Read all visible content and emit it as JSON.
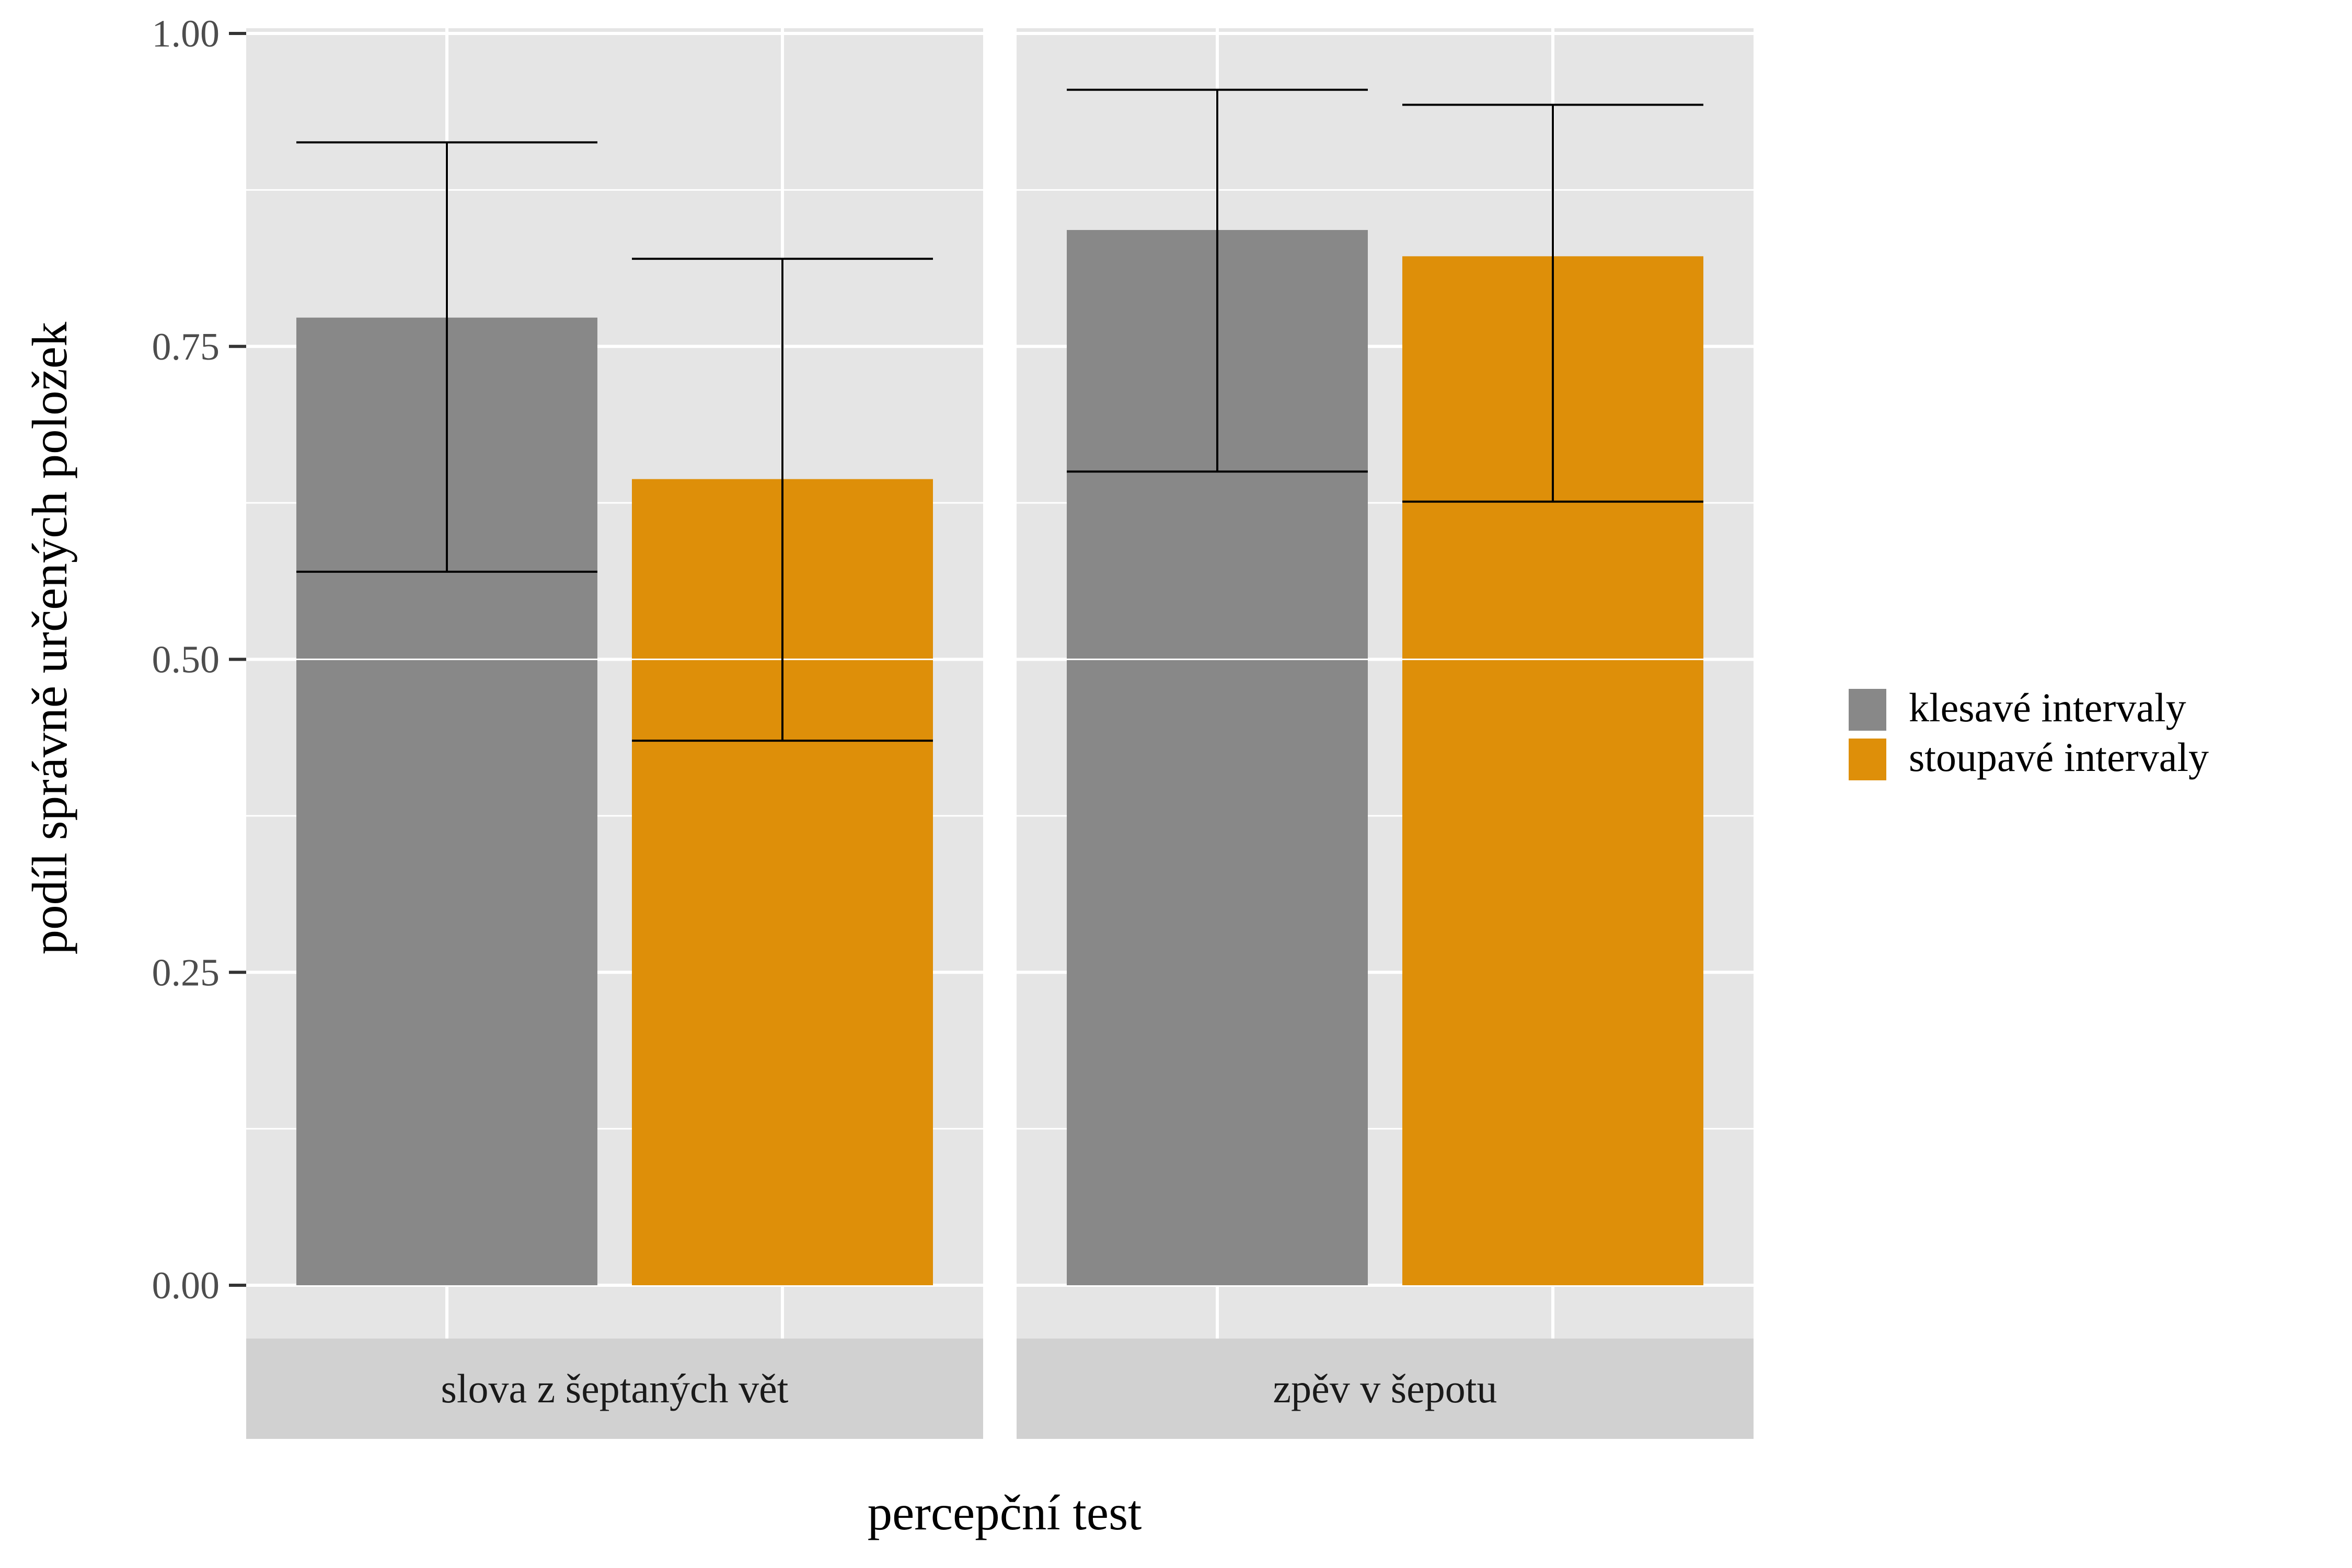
{
  "chart_data": {
    "type": "bar",
    "title": "",
    "xlabel": "percepční test",
    "ylabel": "podíl správně určených položek",
    "ylim": [
      0,
      1
    ],
    "yticks": [
      0,
      0.25,
      0.5,
      0.75,
      1.0
    ],
    "ytick_labels": [
      "0.00",
      "0.25",
      "0.50",
      "0.75",
      "1.00"
    ],
    "grid": true,
    "legend_position": "right",
    "facets": [
      {
        "label": "slova z šeptaných vět",
        "bars": [
          {
            "series": "klesavé intervaly",
            "value": 0.773,
            "ci_low": 0.57,
            "ci_high": 0.913
          },
          {
            "series": "stoupavé intervaly",
            "value": 0.644,
            "ci_low": 0.435,
            "ci_high": 0.82
          }
        ]
      },
      {
        "label": "zpěv v šepotu",
        "bars": [
          {
            "series": "klesavé intervaly",
            "value": 0.843,
            "ci_low": 0.65,
            "ci_high": 0.955
          },
          {
            "series": "stoupavé intervaly",
            "value": 0.822,
            "ci_low": 0.626,
            "ci_high": 0.943
          }
        ]
      }
    ],
    "series": [
      {
        "name": "klesavé intervaly",
        "color": "#888888"
      },
      {
        "name": "stoupavé intervaly",
        "color": "#DE8F09"
      }
    ]
  },
  "style": {
    "panel_bg": "#e5e5e5",
    "strip_bg": "#d1d1d1",
    "grid_color": "#ffffff",
    "errorbar_color": "#000000",
    "tick_color": "#333333"
  }
}
